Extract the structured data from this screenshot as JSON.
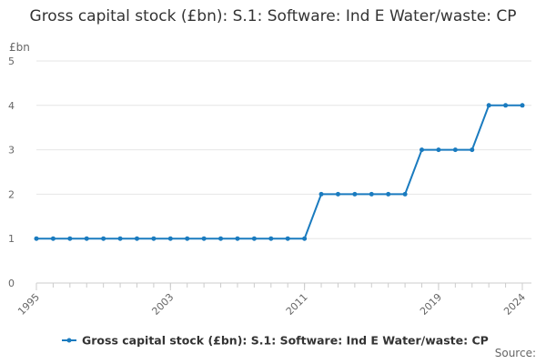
{
  "chart_data": {
    "type": "line",
    "title": "Gross capital stock (£bn): S.1: Software: Ind E Water/waste: CP",
    "y_label": "£bn",
    "source": "Source:",
    "x": [
      1995,
      1996,
      1997,
      1998,
      1999,
      2000,
      2001,
      2002,
      2003,
      2004,
      2005,
      2006,
      2007,
      2008,
      2009,
      2010,
      2011,
      2012,
      2013,
      2014,
      2015,
      2016,
      2017,
      2018,
      2019,
      2020,
      2021,
      2022,
      2023,
      2024
    ],
    "series": [
      {
        "name": "Gross capital stock (£bn): S.1: Software: Ind E Water/waste: CP",
        "color": "#1a7bbf",
        "values": [
          1,
          1,
          1,
          1,
          1,
          1,
          1,
          1,
          1,
          1,
          1,
          1,
          1,
          1,
          1,
          1,
          1,
          2,
          2,
          2,
          2,
          2,
          2,
          3,
          3,
          3,
          3,
          4,
          4,
          4
        ]
      }
    ],
    "xlim": [
      1995,
      2024
    ],
    "xticks": [
      1995,
      2003,
      2011,
      2019,
      2024
    ],
    "ylim": [
      0,
      5
    ],
    "yticks": [
      0,
      1,
      2,
      3,
      4,
      5
    ],
    "grid": true
  }
}
